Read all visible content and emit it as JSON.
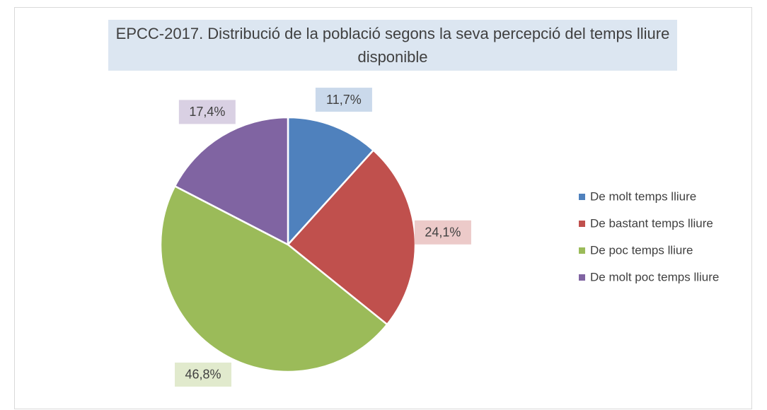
{
  "chart_data": {
    "type": "pie",
    "title": "EPCC-2017. Distribució de la població segons la seva percepció del temps lliure disponible",
    "categories": [
      "De molt temps lliure",
      "De bastant temps lliure",
      "De poc temps lliure",
      "De molt poc temps lliure"
    ],
    "values": [
      11.7,
      24.1,
      46.8,
      17.4
    ],
    "value_labels": [
      "11,7%",
      "24,1%",
      "46,8%",
      "17,4%"
    ],
    "colors": [
      "#4f81bd",
      "#c0504d",
      "#9bbb59",
      "#8064a2"
    ],
    "legend": "right"
  }
}
